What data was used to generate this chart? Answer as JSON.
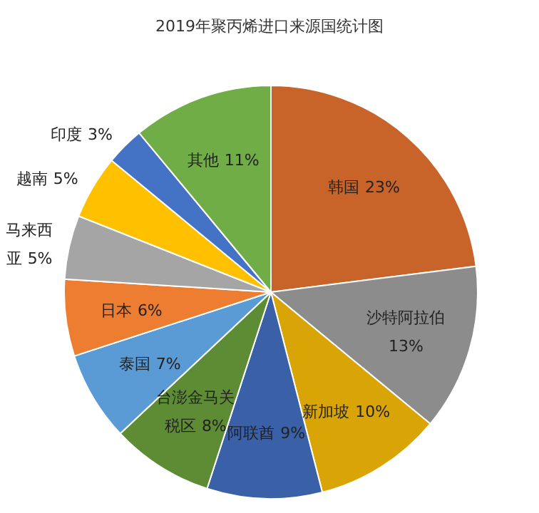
{
  "chart_data": {
    "type": "pie",
    "title": "2019年聚丙烯进口来源国统计图",
    "categories": [
      "韩国",
      "沙特阿拉伯",
      "新加坡",
      "阿联酋",
      "台澎金马关税区",
      "泰国",
      "日本",
      "马来西亚",
      "越南",
      "印度",
      "其他"
    ],
    "values": [
      23,
      13,
      10,
      9,
      8,
      7,
      6,
      5,
      5,
      3,
      11
    ],
    "colors": [
      "#c8632a",
      "#8c8c8c",
      "#d9a406",
      "#3a60a8",
      "#5d8c35",
      "#5b9bd5",
      "#ed7d31",
      "#a5a5a5",
      "#ffc000",
      "#4472c4",
      "#70ad47"
    ],
    "value_labels": [
      "23%",
      "13%",
      "10%",
      "9%",
      "8%",
      "7%",
      "6%",
      "5%",
      "5%",
      "3%",
      "11%"
    ]
  }
}
